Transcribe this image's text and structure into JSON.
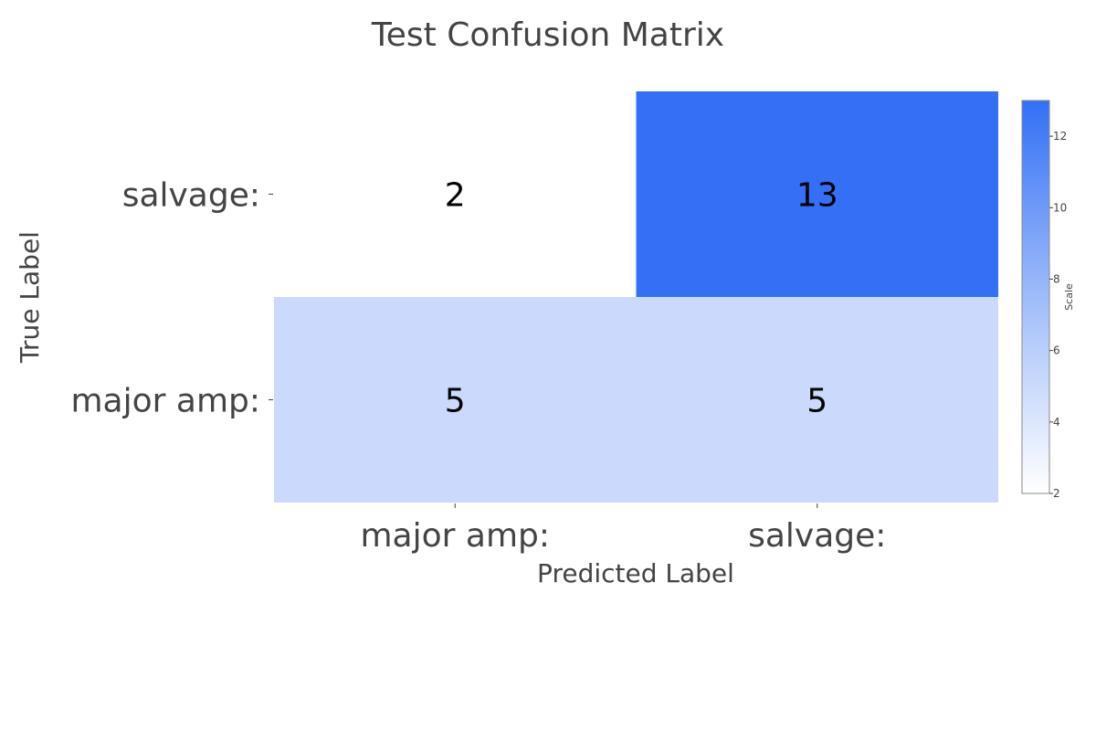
{
  "chart_data": {
    "type": "heatmap",
    "title": "Test Confusion Matrix",
    "xlabel": "Predicted Label",
    "ylabel": "True Label",
    "x_categories": [
      "major amp:",
      "salvage:"
    ],
    "y_categories": [
      "major amp:",
      "salvage:"
    ],
    "z": [
      [
        5,
        5
      ],
      [
        2,
        13
      ]
    ],
    "colorbar": {
      "title": "Scale",
      "range": [
        2,
        13
      ],
      "ticks": [
        2,
        4,
        6,
        8,
        10,
        12
      ],
      "colors": [
        "#ffffff",
        "#9fbcfa",
        "#3370f6"
      ]
    }
  }
}
